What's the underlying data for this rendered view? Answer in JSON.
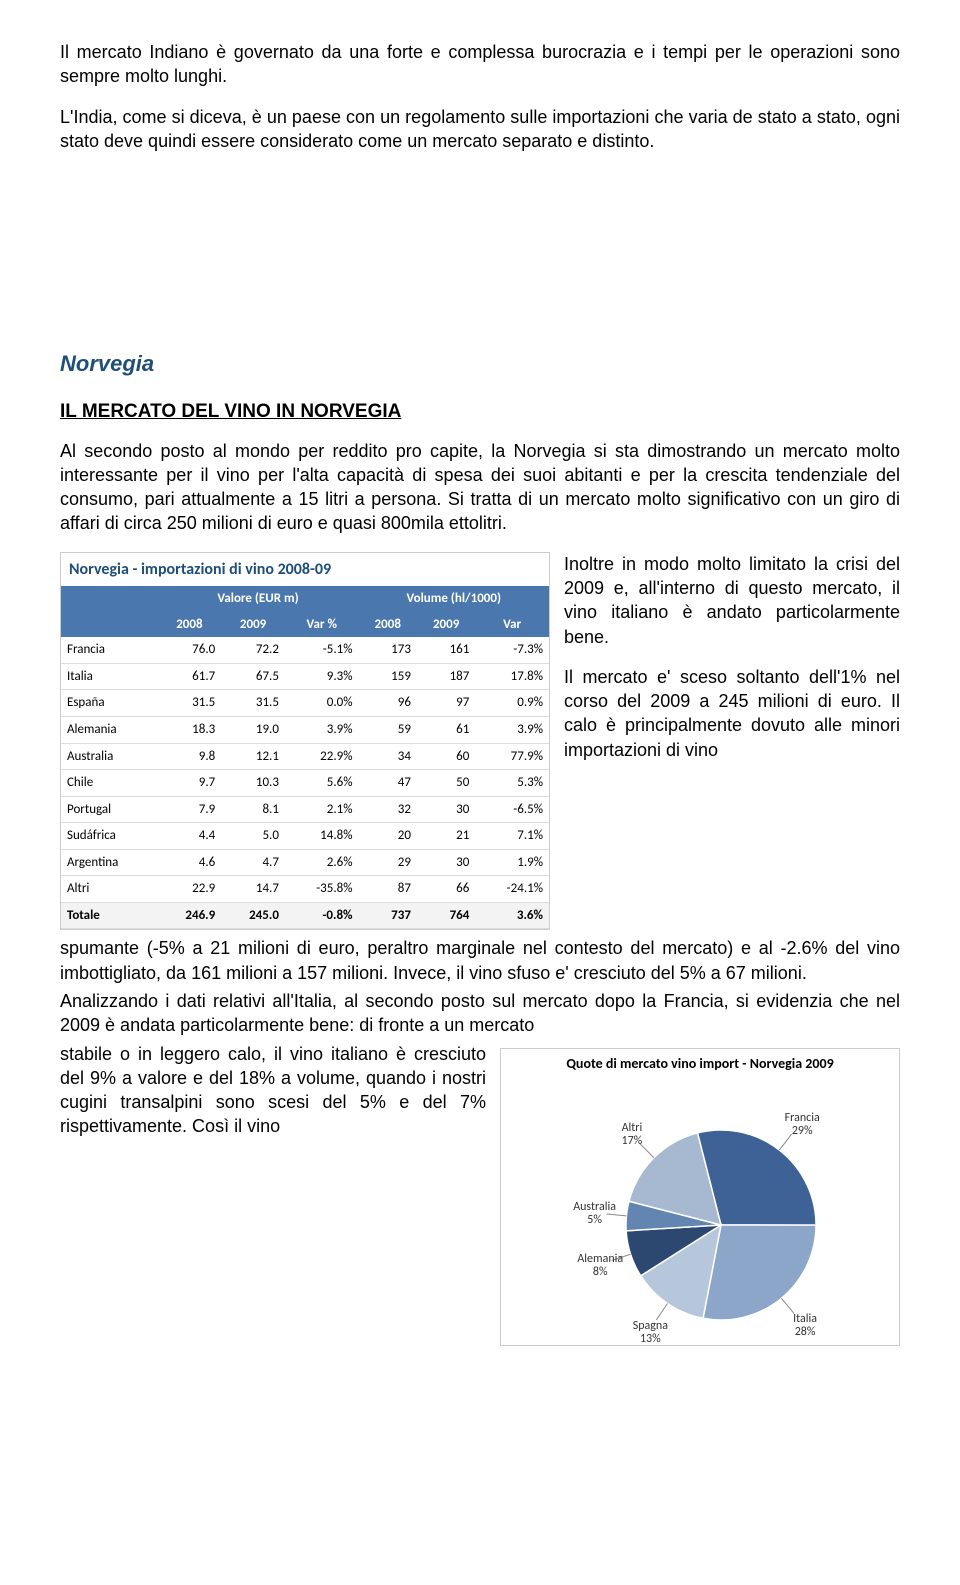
{
  "intro_p1": "Il mercato Indiano è governato da una forte e complessa burocrazia e i tempi per le operazioni sono sempre molto lunghi.",
  "intro_p2": "L'India, come si diceva, è un paese con un regolamento sulle importazioni che varia de stato a stato, ogni stato deve quindi essere considerato come un mercato separato e distinto.",
  "country_title": "Norvegia",
  "section_heading": "IL MERCATO DEL VINO IN NORVEGIA",
  "body_p1": "Al secondo posto al mondo per reddito pro capite, la Norvegia si sta dimostrando un  mercato molto interessante per il vino per l'alta capacità di spesa dei suoi abitanti e per la crescita tendenziale del consumo, pari attualmente a 15 litri a persona. Si tratta di un mercato molto significativo con un giro di affari di circa 250 milioni di euro e quasi 800mila ettolitri.",
  "side_p1": "Inoltre in modo molto limitato la crisi del 2009 e, all'interno di questo mercato, il vino italiano è andato particolarmente bene.",
  "side_p2": "Il mercato e' sceso soltanto dell'1% nel corso del 2009 a 245 milioni di euro. Il calo è principalmente dovuto alle minori importazioni di vino",
  "after_table_p": "spumante (-5% a 21 milioni di euro, peraltro marginale nel contesto del mercato) e al -2.6% del vino imbottigliato, da 161 milioni a 157 milioni. Invece, il vino sfuso e' cresciuto del 5% a 67 milioni.",
  "after_table_p2a": "Analizzando i dati relativi all'Italia, al secondo posto sul mercato dopo la Francia, si evidenzia che nel 2009 è andata particolarmente bene: di fronte a un mercato",
  "after_table_p2b": "stabile o in leggero calo, il vino italiano è cresciuto del 9% a valore e del 18% a volume, quando i nostri cugini transalpini sono scesi del 5% e del 7% rispettivamente. Così il vino",
  "table": {
    "title": "Norvegia - importazioni di vino 2008-09",
    "group1": "Valore (EUR m)",
    "group2": "Volume (hl/1000)",
    "sub_cols": [
      "2008",
      "2009",
      "Var %",
      "2008",
      "2009",
      "Var"
    ],
    "rows": [
      {
        "c": "Francia",
        "v": [
          "76.0",
          "72.2",
          "-5.1%",
          "173",
          "161",
          "-7.3%"
        ]
      },
      {
        "c": "Italia",
        "v": [
          "61.7",
          "67.5",
          "9.3%",
          "159",
          "187",
          "17.8%"
        ]
      },
      {
        "c": "España",
        "v": [
          "31.5",
          "31.5",
          "0.0%",
          "96",
          "97",
          "0.9%"
        ]
      },
      {
        "c": "Alemania",
        "v": [
          "18.3",
          "19.0",
          "3.9%",
          "59",
          "61",
          "3.9%"
        ]
      },
      {
        "c": "Australia",
        "v": [
          "9.8",
          "12.1",
          "22.9%",
          "34",
          "60",
          "77.9%"
        ]
      },
      {
        "c": "Chile",
        "v": [
          "9.7",
          "10.3",
          "5.6%",
          "47",
          "50",
          "5.3%"
        ]
      },
      {
        "c": "Portugal",
        "v": [
          "7.9",
          "8.1",
          "2.1%",
          "32",
          "30",
          "-6.5%"
        ]
      },
      {
        "c": "Sudáfrica",
        "v": [
          "4.4",
          "5.0",
          "14.8%",
          "20",
          "21",
          "7.1%"
        ]
      },
      {
        "c": "Argentina",
        "v": [
          "4.6",
          "4.7",
          "2.6%",
          "29",
          "30",
          "1.9%"
        ]
      },
      {
        "c": "Altri",
        "v": [
          "22.9",
          "14.7",
          "-35.8%",
          "87",
          "66",
          "-24.1%"
        ]
      }
    ],
    "total": {
      "c": "Totale",
      "v": [
        "246.9",
        "245.0",
        "-0.8%",
        "737",
        "764",
        "3.6%"
      ]
    }
  },
  "pie": {
    "title": "Quote di mercato vino import - Norvegia 2009",
    "slices": [
      {
        "label": "Francia",
        "pct": 29,
        "color": "#3f6296"
      },
      {
        "label": "Italia",
        "pct": 28,
        "color": "#8ba6c8"
      },
      {
        "label": "Spagna",
        "pct": 13,
        "color": "#b7c7db"
      },
      {
        "label": "Alemania",
        "pct": 8,
        "color": "#2c4870"
      },
      {
        "label": "Australia",
        "pct": 5,
        "color": "#6385b1"
      },
      {
        "label": "Altri",
        "pct": 17,
        "color": "#a7b9d0"
      }
    ]
  }
}
